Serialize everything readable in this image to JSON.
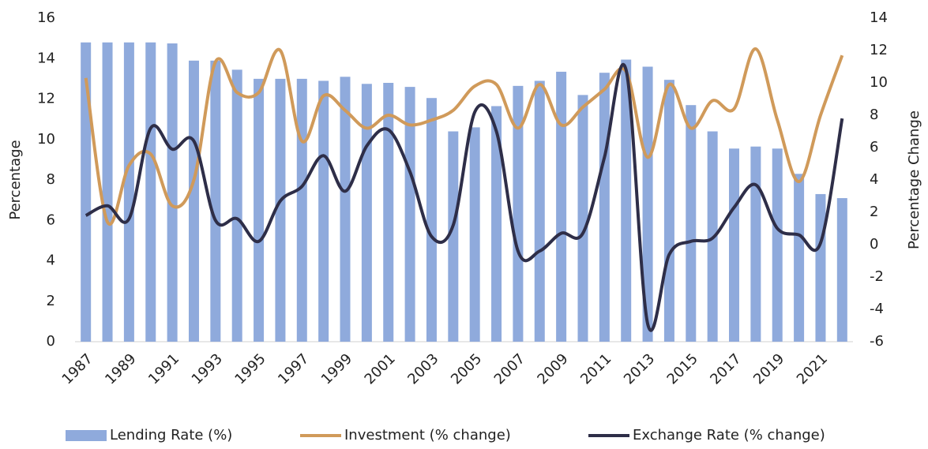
{
  "chart_data": {
    "type": "combo",
    "categories": [
      "1987",
      null,
      "1989",
      null,
      "1991",
      null,
      "1993",
      null,
      "1995",
      null,
      "1997",
      null,
      "1999",
      null,
      "2001",
      null,
      "2003",
      null,
      "2005",
      null,
      "2007",
      null,
      "2009",
      null,
      "2011",
      null,
      "2013",
      null,
      "2015",
      null,
      "2017",
      null,
      "2019",
      null,
      "2021",
      null
    ],
    "ylabel": "Percentage",
    "y2label": "Percentage Change",
    "ylim": [
      0,
      16
    ],
    "yticks": [
      0,
      2,
      4,
      6,
      8,
      10,
      12,
      14,
      16
    ],
    "y2lim": [
      -6,
      14
    ],
    "y2ticks": [
      -6,
      -4,
      -2,
      0,
      2,
      4,
      6,
      8,
      10,
      12,
      14
    ],
    "legend": "bottom",
    "series": [
      {
        "name": "Lending Rate (%)",
        "type": "bar",
        "color": "#8faadc",
        "values": [
          14.8,
          14.8,
          14.8,
          14.8,
          14.75,
          13.9,
          13.9,
          13.45,
          13.0,
          13.0,
          13.0,
          12.9,
          13.1,
          12.75,
          12.8,
          12.6,
          12.05,
          10.4,
          10.6,
          11.65,
          12.65,
          12.9,
          13.35,
          12.2,
          13.3,
          13.95,
          13.6,
          12.95,
          11.7,
          10.4,
          9.55,
          9.65,
          9.55,
          8.3,
          7.3,
          7.1
        ]
      },
      {
        "name": "Investment (% change)",
        "type": "line",
        "axis": "y2",
        "color": "#d09a5a",
        "values": [
          10.3,
          1.4,
          4.9,
          5.6,
          2.4,
          4.0,
          11.3,
          9.4,
          9.4,
          12.0,
          6.4,
          9.2,
          8.3,
          7.2,
          8.0,
          7.4,
          7.7,
          8.3,
          9.8,
          9.9,
          7.2,
          9.9,
          7.4,
          8.5,
          9.6,
          10.7,
          5.4,
          9.9,
          7.2,
          8.9,
          8.4,
          12.1,
          7.7,
          3.9,
          8.0,
          11.7
        ]
      },
      {
        "name": "Exchange Rate (% change)",
        "type": "line",
        "axis": "y2",
        "color": "#2e2e48",
        "values": [
          1.8,
          2.4,
          1.6,
          7.2,
          5.9,
          6.4,
          1.5,
          1.6,
          0.2,
          2.7,
          3.6,
          5.5,
          3.3,
          6.1,
          7.1,
          4.5,
          0.5,
          1.2,
          8.2,
          7.0,
          -0.4,
          -0.4,
          0.7,
          0.7,
          5.4,
          10.8,
          -4.9,
          -0.6,
          0.2,
          0.4,
          2.3,
          3.7,
          1.0,
          0.6,
          0.1,
          7.8
        ]
      }
    ]
  }
}
